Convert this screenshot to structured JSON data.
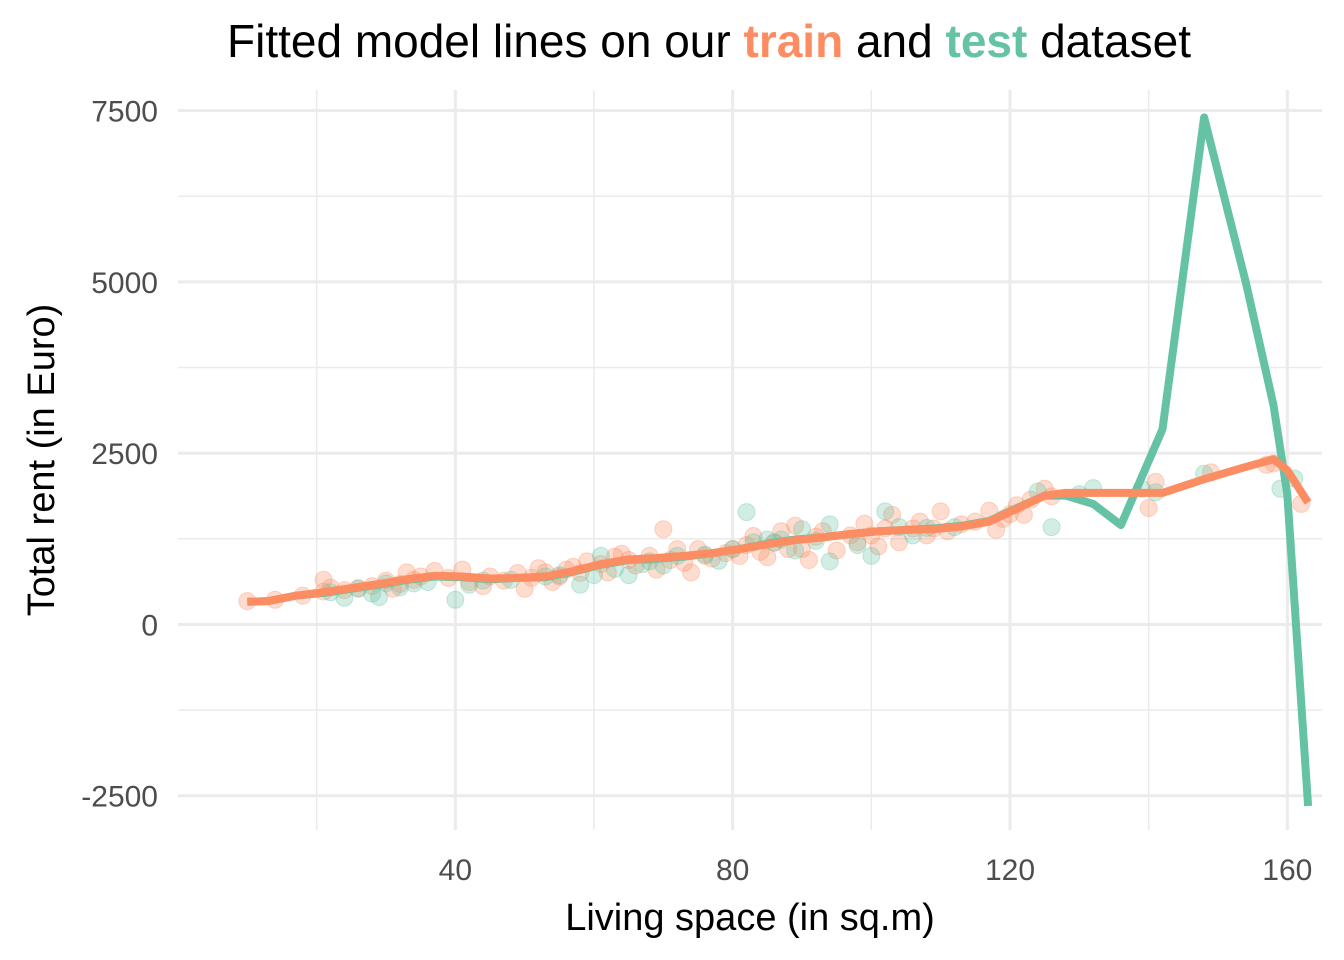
{
  "chart_data": {
    "type": "line",
    "title_parts": {
      "before": "Fitted model lines on our ",
      "train_word": "train",
      "middle": " and ",
      "test_word": "test",
      "after": " dataset"
    },
    "xlabel": "Living space (in sq.m)",
    "ylabel": "Total rent (in Euro)",
    "xlim": [
      0,
      165
    ],
    "ylim": [
      -3000,
      7800
    ],
    "x_ticks": [
      40,
      80,
      120,
      160
    ],
    "y_ticks": [
      -2500,
      0,
      2500,
      5000,
      7500
    ],
    "grid": true,
    "legend": "none",
    "colors": {
      "train": "#fc8d62",
      "test": "#66c2a5"
    },
    "series": [
      {
        "name": "test",
        "kind": "line",
        "x": [
          10,
          13,
          17,
          21,
          25,
          29,
          33,
          37,
          41,
          45,
          49,
          53,
          57,
          61,
          65,
          69,
          73,
          77,
          81,
          85,
          89,
          93,
          97,
          101,
          105,
          109,
          113,
          117,
          121,
          125,
          128,
          132,
          136,
          142,
          148,
          154,
          158,
          160,
          163
        ],
        "y": [
          330,
          340,
          420,
          460,
          520,
          580,
          650,
          700,
          690,
          660,
          680,
          690,
          770,
          870,
          940,
          960,
          990,
          1040,
          1100,
          1180,
          1240,
          1270,
          1320,
          1360,
          1380,
          1400,
          1440,
          1510,
          1700,
          1880,
          1880,
          1760,
          1450,
          2850,
          7400,
          5000,
          3200,
          1900,
          -2650
        ]
      },
      {
        "name": "train",
        "kind": "line",
        "x": [
          10,
          13,
          17,
          21,
          25,
          29,
          33,
          37,
          41,
          45,
          49,
          53,
          57,
          61,
          65,
          69,
          73,
          77,
          81,
          85,
          89,
          93,
          97,
          101,
          105,
          109,
          113,
          117,
          121,
          125,
          128,
          132,
          136,
          142,
          148,
          154,
          158,
          160,
          163
        ],
        "y": [
          330,
          340,
          420,
          470,
          530,
          590,
          660,
          710,
          700,
          670,
          680,
          700,
          780,
          880,
          950,
          970,
          1000,
          1040,
          1100,
          1170,
          1230,
          1270,
          1320,
          1360,
          1380,
          1390,
          1430,
          1500,
          1690,
          1880,
          1920,
          1920,
          1920,
          1920,
          2120,
          2300,
          2410,
          2250,
          1780
        ]
      },
      {
        "name": "train",
        "kind": "points",
        "points": [
          [
            10,
            340
          ],
          [
            14,
            360
          ],
          [
            18,
            420
          ],
          [
            21,
            480
          ],
          [
            21,
            650
          ],
          [
            22,
            540
          ],
          [
            24,
            500
          ],
          [
            26,
            530
          ],
          [
            28,
            560
          ],
          [
            30,
            640
          ],
          [
            31,
            520
          ],
          [
            32,
            590
          ],
          [
            33,
            760
          ],
          [
            34,
            650
          ],
          [
            35,
            700
          ],
          [
            37,
            780
          ],
          [
            39,
            680
          ],
          [
            41,
            800
          ],
          [
            42,
            620
          ],
          [
            44,
            560
          ],
          [
            45,
            700
          ],
          [
            47,
            640
          ],
          [
            49,
            750
          ],
          [
            50,
            520
          ],
          [
            51,
            680
          ],
          [
            52,
            820
          ],
          [
            53,
            760
          ],
          [
            54,
            620
          ],
          [
            55,
            700
          ],
          [
            56,
            800
          ],
          [
            57,
            840
          ],
          [
            58,
            750
          ],
          [
            59,
            920
          ],
          [
            61,
            880
          ],
          [
            62,
            760
          ],
          [
            63,
            990
          ],
          [
            64,
            1030
          ],
          [
            65,
            940
          ],
          [
            66,
            860
          ],
          [
            68,
            1000
          ],
          [
            69,
            800
          ],
          [
            70,
            1390
          ],
          [
            71,
            940
          ],
          [
            72,
            1100
          ],
          [
            73,
            900
          ],
          [
            74,
            760
          ],
          [
            75,
            1100
          ],
          [
            76,
            1000
          ],
          [
            77,
            960
          ],
          [
            79,
            1040
          ],
          [
            80,
            1100
          ],
          [
            81,
            1000
          ],
          [
            82,
            1160
          ],
          [
            83,
            1290
          ],
          [
            84,
            1060
          ],
          [
            85,
            980
          ],
          [
            86,
            1200
          ],
          [
            87,
            1360
          ],
          [
            88,
            1100
          ],
          [
            89,
            1440
          ],
          [
            90,
            1100
          ],
          [
            91,
            940
          ],
          [
            92,
            1280
          ],
          [
            93,
            1360
          ],
          [
            95,
            1080
          ],
          [
            97,
            1300
          ],
          [
            98,
            1200
          ],
          [
            99,
            1470
          ],
          [
            100,
            1300
          ],
          [
            101,
            1140
          ],
          [
            102,
            1400
          ],
          [
            103,
            1600
          ],
          [
            104,
            1200
          ],
          [
            106,
            1400
          ],
          [
            107,
            1500
          ],
          [
            108,
            1300
          ],
          [
            109,
            1400
          ],
          [
            110,
            1650
          ],
          [
            111,
            1360
          ],
          [
            113,
            1460
          ],
          [
            115,
            1500
          ],
          [
            117,
            1660
          ],
          [
            118,
            1380
          ],
          [
            119,
            1540
          ],
          [
            120,
            1610
          ],
          [
            121,
            1740
          ],
          [
            122,
            1600
          ],
          [
            123,
            1820
          ],
          [
            125,
            1980
          ],
          [
            126,
            1870
          ],
          [
            140,
            1700
          ],
          [
            141,
            2080
          ],
          [
            149,
            2220
          ],
          [
            157,
            2330
          ],
          [
            158,
            2350
          ],
          [
            162,
            1760
          ]
        ]
      },
      {
        "name": "test",
        "kind": "points",
        "points": [
          [
            22,
            470
          ],
          [
            24,
            390
          ],
          [
            26,
            520
          ],
          [
            28,
            450
          ],
          [
            29,
            400
          ],
          [
            30,
            600
          ],
          [
            32,
            540
          ],
          [
            34,
            600
          ],
          [
            36,
            620
          ],
          [
            40,
            360
          ],
          [
            42,
            580
          ],
          [
            44,
            640
          ],
          [
            48,
            650
          ],
          [
            53,
            700
          ],
          [
            55,
            720
          ],
          [
            58,
            580
          ],
          [
            60,
            720
          ],
          [
            61,
            1000
          ],
          [
            63,
            810
          ],
          [
            65,
            720
          ],
          [
            67,
            880
          ],
          [
            68,
            920
          ],
          [
            70,
            860
          ],
          [
            72,
            1000
          ],
          [
            76,
            1020
          ],
          [
            78,
            930
          ],
          [
            80,
            1100
          ],
          [
            82,
            1640
          ],
          [
            83,
            1200
          ],
          [
            85,
            1240
          ],
          [
            86,
            1190
          ],
          [
            87,
            1240
          ],
          [
            89,
            1080
          ],
          [
            90,
            1390
          ],
          [
            92,
            1220
          ],
          [
            94,
            1460
          ],
          [
            94,
            920
          ],
          [
            98,
            1160
          ],
          [
            100,
            1000
          ],
          [
            102,
            1650
          ],
          [
            104,
            1420
          ],
          [
            106,
            1300
          ],
          [
            108,
            1410
          ],
          [
            112,
            1420
          ],
          [
            124,
            1940
          ],
          [
            126,
            1420
          ],
          [
            130,
            1900
          ],
          [
            132,
            1990
          ],
          [
            139,
            1980
          ],
          [
            141,
            1930
          ],
          [
            148,
            2200
          ],
          [
            159,
            1980
          ],
          [
            161,
            2130
          ]
        ]
      }
    ]
  }
}
